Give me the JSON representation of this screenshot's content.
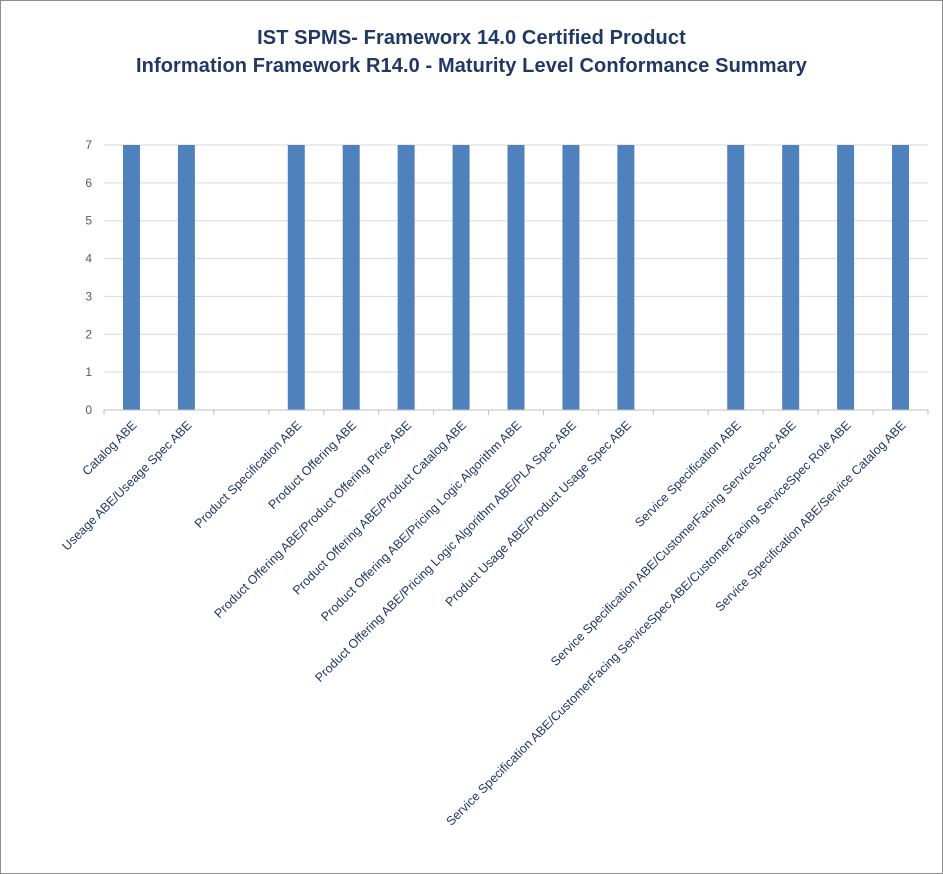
{
  "chart_data": {
    "type": "bar",
    "title": "IST SPMS- Frameworx 14.0 Certified Product",
    "subtitle": "Information Framework R14.0 - Maturity Level Conformance Summary",
    "xlabel": "",
    "ylabel": "",
    "ylim": [
      0,
      7
    ],
    "yticks": [
      "0",
      "1",
      "2",
      "3",
      "4",
      "5",
      "6",
      "7"
    ],
    "grid": true,
    "legend": "none",
    "bar_color": "#4f81bd",
    "categories": [
      "Catalog ABE",
      "Useage ABE/Useage Spec ABE",
      "",
      "Product Specification ABE",
      "Product Offering ABE",
      "Product Offering ABE/Product Offering Price ABE",
      "Product Offering ABE/Product Catalog ABE",
      "Product Offering ABE/Pricing Logic Algorithm ABE",
      "Product Offering ABE/Pricing Logic Algorithm ABE/PLA Spec ABE",
      "Product Usage ABE/Product Usage Spec ABE",
      "",
      "Service Specification ABE",
      "Service Specification ABE/CustomerFacing ServiceSpec ABE",
      "Service Specification ABE/CustomerFacing ServiceSpec ABE/CustomerFacing ServiceSpec Role ABE",
      "Service Specification ABE/Service Catalog ABE"
    ],
    "values": [
      7,
      7,
      null,
      7,
      7,
      7,
      7,
      7,
      7,
      7,
      null,
      7,
      7,
      7,
      7
    ]
  }
}
